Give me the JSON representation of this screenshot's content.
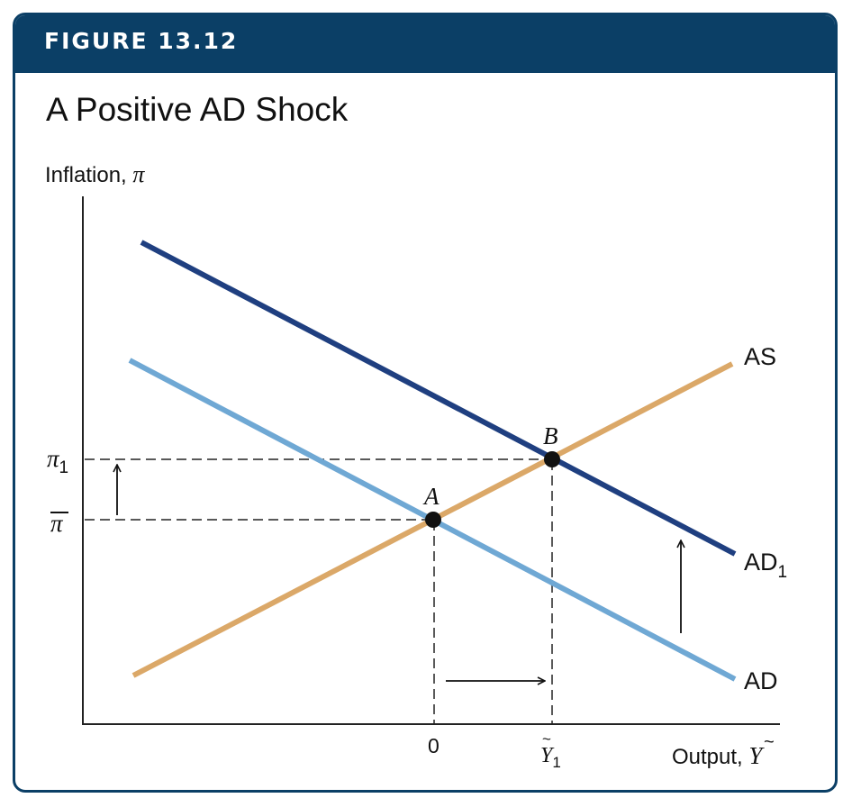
{
  "figure": {
    "label": "FIGURE 13.12",
    "title": "A Positive AD Shock"
  },
  "axes": {
    "y_label_text": "Inflation, ",
    "y_label_symbol": "π",
    "x_label_text": "Output, ",
    "x_label_symbol": "Y",
    "x_ticks": {
      "zero": "0",
      "y1_symbol": "Y",
      "y1_sub": "1"
    },
    "y_ticks": {
      "pi_bar": "π",
      "pi1_symbol": "π",
      "pi1_sub": "1"
    }
  },
  "curves": {
    "as": {
      "label": "AS",
      "color": "#dba868"
    },
    "ad": {
      "label": "AD",
      "color": "#6fa8d4"
    },
    "ad1": {
      "label": "AD",
      "label_sub": "1",
      "color": "#1f3f80"
    }
  },
  "points": {
    "a": "A",
    "b": "B"
  }
}
